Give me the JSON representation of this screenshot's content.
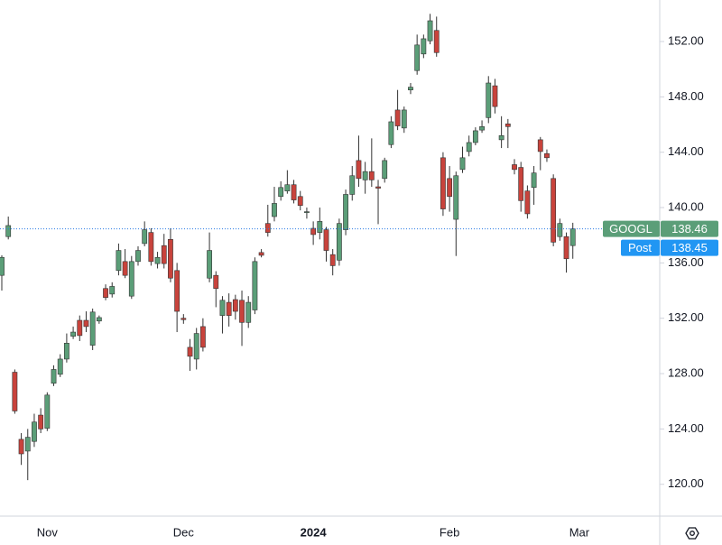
{
  "chart_data": {
    "type": "candlestick",
    "categories": [
      null,
      null,
      null,
      null,
      null,
      null,
      null,
      "Nov",
      null,
      null,
      null,
      null,
      null,
      null,
      null,
      null,
      null,
      null,
      null,
      null,
      null,
      null,
      null,
      null,
      null,
      null,
      null,
      null,
      "Dec",
      null,
      null,
      null,
      null,
      null,
      null,
      null,
      null,
      null,
      null,
      null,
      null,
      null,
      null,
      null,
      null,
      null,
      null,
      null,
      "2024",
      null,
      null,
      null,
      null,
      null,
      null,
      null,
      null,
      null,
      null,
      null,
      null,
      null,
      null,
      null,
      null,
      null,
      null,
      null,
      null,
      "Feb",
      null,
      null,
      null,
      null,
      null,
      null,
      null,
      null,
      null,
      null,
      null,
      null,
      null,
      null,
      null,
      null,
      null,
      null,
      null,
      "Mar"
    ],
    "open": [
      135.1,
      137.9,
      128.1,
      123.25,
      122.4,
      123.1,
      125.0,
      124.05,
      127.3,
      127.95,
      129.05,
      130.7,
      131.85,
      131.85,
      130.05,
      131.8,
      134.15,
      133.75,
      135.45,
      136.1,
      133.6,
      136.1,
      137.4,
      138.2,
      135.95,
      137.25,
      137.7,
      135.45,
      132.0,
      129.9,
      129.05,
      131.4,
      134.9,
      135.1,
      132.2,
      133.15,
      133.35,
      133.3,
      131.7,
      132.6,
      136.75,
      138.85,
      139.35,
      140.8,
      141.2,
      141.65,
      140.8,
      139.65,
      138.5,
      138.2,
      138.4,
      136.6,
      136.2,
      138.4,
      140.95,
      143.4,
      142.0,
      142.6,
      141.5,
      142.1,
      144.55,
      147.05,
      145.75,
      148.5,
      149.9,
      151.1,
      152.05,
      152.8,
      143.6,
      142.1,
      139.15,
      142.75,
      144.05,
      144.7,
      145.6,
      146.5,
      148.8,
      144.9,
      146.05,
      143.1,
      142.9,
      141.2,
      141.45,
      144.9,
      143.9,
      142.1,
      137.9,
      137.9,
      137.25,
      null
    ],
    "high": [
      136.55,
      139.35,
      128.3,
      123.7,
      124.0,
      125.1,
      125.5,
      126.65,
      128.6,
      129.4,
      130.9,
      131.4,
      132.2,
      132.5,
      132.7,
      132.2,
      134.45,
      134.6,
      137.4,
      137.0,
      136.5,
      137.2,
      139.0,
      138.5,
      136.8,
      138.1,
      138.5,
      136.0,
      132.3,
      130.5,
      131.3,
      132.0,
      138.2,
      135.4,
      133.6,
      133.8,
      133.7,
      134.0,
      133.6,
      136.4,
      137.0,
      140.2,
      141.5,
      141.9,
      142.7,
      142.0,
      141.2,
      140.0,
      139.0,
      140.0,
      138.6,
      137.0,
      139.2,
      141.3,
      143.0,
      145.2,
      143.3,
      145.0,
      142.0,
      143.6,
      146.6,
      148.5,
      147.3,
      149.0,
      152.5,
      152.5,
      154.0,
      153.8,
      144.0,
      143.0,
      142.6,
      144.4,
      145.2,
      145.8,
      146.3,
      149.5,
      149.3,
      146.6,
      146.4,
      143.5,
      143.3,
      141.6,
      143.0,
      145.1,
      144.2,
      142.4,
      139.2,
      138.2,
      138.9,
      null
    ],
    "low": [
      134.0,
      137.7,
      125.1,
      121.4,
      120.3,
      122.7,
      123.7,
      123.85,
      127.1,
      127.75,
      128.8,
      130.5,
      130.35,
      131.0,
      129.7,
      131.6,
      133.3,
      133.5,
      135.1,
      134.9,
      133.4,
      135.8,
      137.2,
      135.8,
      135.6,
      135.6,
      134.6,
      131.0,
      131.6,
      128.2,
      128.3,
      129.6,
      134.6,
      132.8,
      130.9,
      131.4,
      131.9,
      130.0,
      131.3,
      132.3,
      136.4,
      137.9,
      139.0,
      140.5,
      141.0,
      140.3,
      139.8,
      139.2,
      137.3,
      137.7,
      136.1,
      135.1,
      135.8,
      138.0,
      140.5,
      141.5,
      141.0,
      141.5,
      138.8,
      141.8,
      144.3,
      145.6,
      145.4,
      148.2,
      149.6,
      150.8,
      151.8,
      150.9,
      139.4,
      139.7,
      136.5,
      142.5,
      143.7,
      144.5,
      145.4,
      146.1,
      146.8,
      144.3,
      144.3,
      142.4,
      139.7,
      139.2,
      140.2,
      142.7,
      143.3,
      137.2,
      137.6,
      135.3,
      136.3,
      null
    ],
    "close": [
      136.4,
      138.7,
      125.3,
      122.2,
      123.4,
      124.5,
      124.0,
      126.45,
      128.3,
      129.05,
      130.2,
      131.0,
      130.75,
      131.4,
      132.45,
      132.05,
      133.5,
      134.3,
      136.9,
      135.1,
      136.1,
      136.9,
      138.4,
      136.1,
      136.4,
      135.95,
      134.9,
      132.5,
      131.9,
      129.25,
      130.9,
      129.9,
      136.9,
      134.15,
      133.3,
      132.2,
      132.5,
      131.7,
      133.15,
      136.1,
      136.55,
      138.2,
      140.3,
      141.45,
      141.65,
      140.55,
      140.15,
      139.7,
      138.05,
      139.0,
      136.9,
      135.8,
      138.85,
      140.95,
      142.3,
      142.1,
      142.6,
      142.0,
      141.4,
      143.4,
      146.2,
      145.9,
      147.05,
      148.7,
      151.75,
      152.2,
      153.5,
      151.2,
      139.9,
      140.8,
      142.3,
      143.6,
      144.7,
      145.55,
      145.85,
      149.0,
      147.3,
      145.2,
      145.85,
      142.75,
      140.5,
      139.55,
      142.5,
      144.05,
      143.6,
      137.5,
      138.85,
      136.3,
      138.46,
      null
    ],
    "up_color": "#5b9e78",
    "down_color": "#c8433c",
    "ylim": [
      117.7,
      155
    ],
    "yticks": [
      {
        "value": 120,
        "label": "120.00"
      },
      {
        "value": 124,
        "label": "124.00"
      },
      {
        "value": 128,
        "label": "128.00"
      },
      {
        "value": 132,
        "label": "132.00"
      },
      {
        "value": 136,
        "label": "136.00"
      },
      {
        "value": 140,
        "label": "140.00"
      },
      {
        "value": 144,
        "label": "144.00"
      },
      {
        "value": 148,
        "label": "148.00"
      },
      {
        "value": 152,
        "label": "152.00"
      }
    ],
    "last_price": {
      "label": "GOOGL",
      "value": 138.46,
      "color": "#5b9e78"
    },
    "post_price": {
      "label": "Post",
      "value": 138.45,
      "color": "#2196f3"
    }
  }
}
